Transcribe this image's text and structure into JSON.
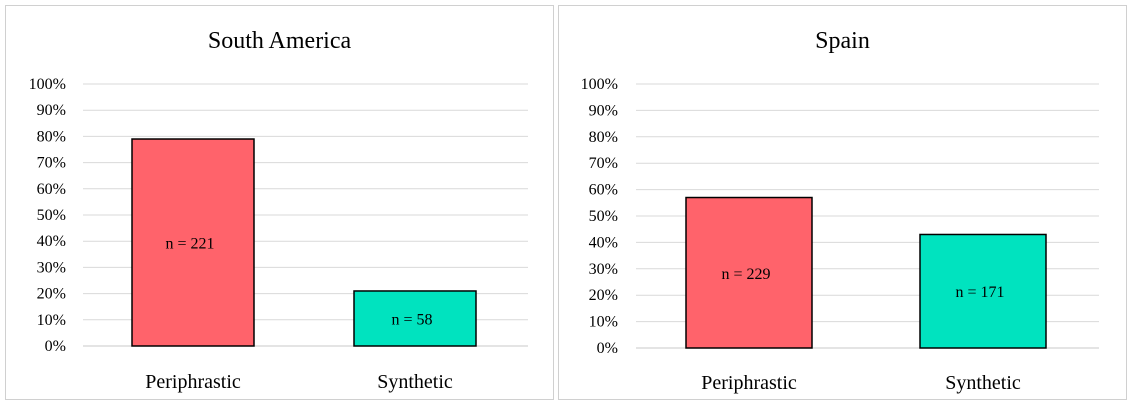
{
  "chart_data": [
    {
      "type": "bar",
      "title": "South America",
      "categories": [
        "Periphrastic",
        "Synthetic"
      ],
      "values": [
        79,
        21
      ],
      "data_labels": [
        "n = 221",
        "n = 58"
      ],
      "colors": [
        "#ff636b",
        "#00e3bf"
      ],
      "ylim": [
        0,
        100
      ],
      "yticks": [
        "0%",
        "10%",
        "20%",
        "30%",
        "40%",
        "50%",
        "60%",
        "70%",
        "80%",
        "90%",
        "100%"
      ],
      "grid": true,
      "xlabel": "",
      "ylabel": ""
    },
    {
      "type": "bar",
      "title": "Spain",
      "categories": [
        "Periphrastic",
        "Synthetic"
      ],
      "values": [
        57,
        43
      ],
      "data_labels": [
        "n = 229",
        "n = 171"
      ],
      "colors": [
        "#ff636b",
        "#00e3bf"
      ],
      "ylim": [
        0,
        100
      ],
      "yticks": [
        "0%",
        "10%",
        "20%",
        "30%",
        "40%",
        "50%",
        "60%",
        "70%",
        "80%",
        "90%",
        "100%"
      ],
      "grid": true,
      "xlabel": "",
      "ylabel": ""
    }
  ]
}
